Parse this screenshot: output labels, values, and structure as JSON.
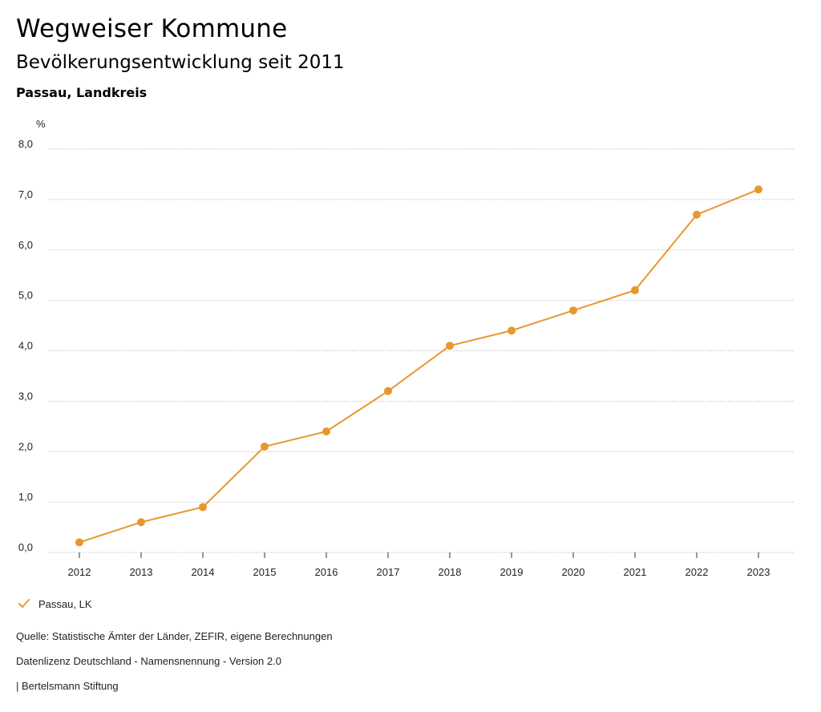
{
  "header": {
    "title": "Wegweiser Kommune",
    "subtitle": "Bevölkerungsentwicklung seit 2011",
    "region": "Passau, Landkreis"
  },
  "footer": {
    "source": "Quelle: Statistische Ämter der Länder, ZEFIR, eigene Berechnungen",
    "license": "Datenlizenz Deutschland - Namensnennung - Version 2.0",
    "credit": "| Bertelsmann Stiftung"
  },
  "colors": {
    "series": "#e8972f",
    "grid": "#bdbdbd"
  },
  "chart_data": {
    "type": "line",
    "title": "Bevölkerungsentwicklung seit 2011",
    "xlabel": "",
    "ylabel": "%",
    "categories": [
      "2012",
      "2013",
      "2014",
      "2015",
      "2016",
      "2017",
      "2018",
      "2019",
      "2020",
      "2021",
      "2022",
      "2023"
    ],
    "series": [
      {
        "name": "Passau, LK",
        "values": [
          0.2,
          0.6,
          0.9,
          2.1,
          2.4,
          3.2,
          4.1,
          4.4,
          4.8,
          5.2,
          6.7,
          7.2
        ]
      }
    ],
    "ylim": [
      0,
      8
    ],
    "yticks": [
      "0,0",
      "1,0",
      "2,0",
      "3,0",
      "4,0",
      "5,0",
      "6,0",
      "7,0",
      "8,0"
    ],
    "grid": true,
    "legend_position": "bottom-left"
  }
}
